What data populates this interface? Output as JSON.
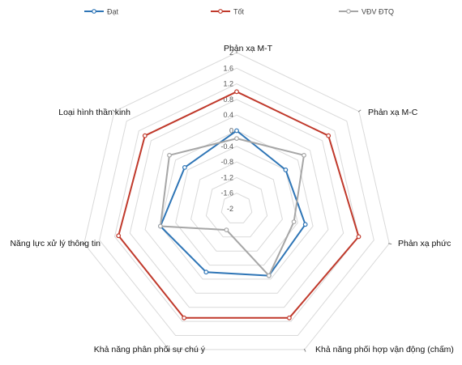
{
  "chart_data": {
    "type": "radar",
    "axes": [
      "Phản xạ M-T",
      "Phản xạ M-C",
      "Phản xạ phức",
      "Khả năng phối hợp vận động (chấm)",
      "Khả năng phân phối sự chú ý",
      "Năng lực xử lý thông tin",
      "Loại hình thần kinh"
    ],
    "ticks": [
      "2",
      "1.6",
      "1.2",
      "0.8",
      "0.4",
      "0",
      "-0.4",
      "-0.8",
      "-1.2",
      "-1.6",
      "-2"
    ],
    "range": [
      -2,
      2
    ],
    "series": [
      {
        "name": "Đạt",
        "color": "#2e75b6",
        "values": [
          0.0,
          -0.4,
          -0.2,
          -0.1,
          -0.2,
          0.0,
          -0.3
        ]
      },
      {
        "name": "Tốt",
        "color": "#c0392b",
        "values": [
          1.0,
          1.0,
          1.2,
          1.1,
          1.1,
          1.1,
          1.0
        ]
      },
      {
        "name": "VĐV ĐTQ",
        "color": "#a6a6a6",
        "values": [
          -0.2,
          0.2,
          -0.5,
          -0.1,
          -1.4,
          0.0,
          0.2
        ]
      }
    ],
    "legend_position": "top"
  }
}
